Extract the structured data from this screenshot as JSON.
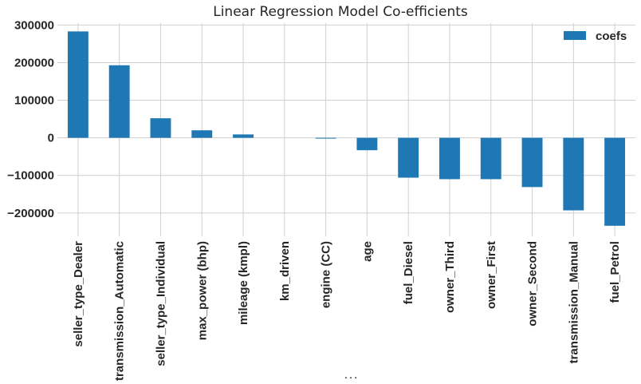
{
  "chart_data": {
    "type": "bar",
    "title": "Linear Regression Model Co-efficients",
    "xlabel": ". . .",
    "ylabel": "",
    "categories": [
      "seller_type_Dealer",
      "transmission_Automatic",
      "seller_type_Individual",
      "max_power (bhp)",
      "mileage (kmpl)",
      "km_driven",
      "engine (CC)",
      "age",
      "fuel_Diesel",
      "owner_Third",
      "owner_First",
      "owner_Second",
      "transmission_Manual",
      "fuel_Petrol"
    ],
    "series": [
      {
        "name": "coefs",
        "color": "#1f77b4",
        "values": [
          283000,
          193000,
          52000,
          20000,
          9000,
          0,
          -1500,
          -33000,
          -106000,
          -110000,
          -110000,
          -131000,
          -193000,
          -234000
        ]
      }
    ],
    "ylim": [
      -262000,
      305000
    ],
    "yticks": [
      -200000,
      -100000,
      0,
      100000,
      200000,
      300000
    ],
    "ytick_labels": [
      "−200000",
      "−100000",
      "0",
      "100000",
      "200000",
      "300000"
    ],
    "grid": true,
    "legend_position": "top-right"
  }
}
